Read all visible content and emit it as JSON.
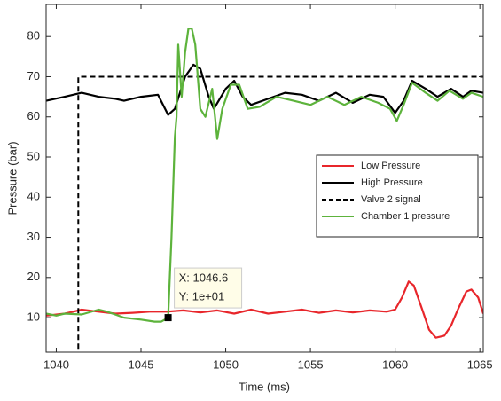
{
  "chart_data": {
    "type": "line",
    "x_label": "Time (ms)",
    "y_label": "Pressure (bar)",
    "xlim": [
      1039.4,
      1065.2
    ],
    "ylim": [
      1.4,
      88
    ],
    "xticks": [
      1040,
      1045,
      1050,
      1055,
      1060,
      1065
    ],
    "yticks": [
      10,
      20,
      30,
      40,
      50,
      60,
      70,
      80
    ],
    "legend": "east",
    "series": [
      {
        "name": "Low Pressure",
        "color": "#e8262b",
        "dash": false,
        "x": [
          1039.4,
          1040.5,
          1041,
          1041.5,
          1042.5,
          1043.5,
          1044.5,
          1045.5,
          1046.5,
          1047.5,
          1048.5,
          1049.5,
          1050.5,
          1051.5,
          1052.5,
          1053.5,
          1054.5,
          1055.5,
          1056.5,
          1057.5,
          1058.5,
          1059.5,
          1060,
          1060.4,
          1060.8,
          1061.1,
          1061.6,
          1062,
          1062.4,
          1062.9,
          1063.3,
          1063.7,
          1064.2,
          1064.5,
          1064.9,
          1065.2
        ],
        "values": [
          10.5,
          11,
          11.5,
          12,
          11.5,
          11,
          11.2,
          11.5,
          11.5,
          11.8,
          11.3,
          11.8,
          11,
          12,
          11,
          11.5,
          12,
          11.2,
          11.8,
          11.3,
          11.8,
          11.5,
          12,
          15,
          19,
          18,
          12,
          7,
          5,
          5.5,
          8,
          12,
          16.5,
          17,
          15,
          11
        ]
      },
      {
        "name": "High Pressure",
        "color": "#000000",
        "dash": false,
        "x": [
          1039.4,
          1040.5,
          1041.5,
          1042.5,
          1043.5,
          1044,
          1045,
          1046,
          1046.6,
          1047,
          1047.6,
          1048.1,
          1048.5,
          1049,
          1049.3,
          1050,
          1050.5,
          1051,
          1051.5,
          1052.5,
          1053.5,
          1054.5,
          1055.5,
          1056.5,
          1057.5,
          1058.5,
          1059.3,
          1060,
          1060.5,
          1061,
          1061.8,
          1062.5,
          1063.3,
          1064,
          1064.5,
          1065.2
        ],
        "values": [
          64,
          65,
          66,
          65,
          64.5,
          64,
          65,
          65.5,
          60.5,
          62,
          70,
          73,
          72,
          65,
          62,
          67,
          69,
          65,
          63,
          64.5,
          66,
          65.5,
          64,
          66,
          63.5,
          65.5,
          65,
          61,
          64,
          69,
          67,
          65,
          67,
          65,
          66.5,
          66
        ]
      },
      {
        "name": "Valve 2 signal",
        "color": "#000000",
        "dash": true,
        "x": [
          1041.3,
          1041.3,
          1065.2
        ],
        "values": [
          0,
          70,
          70
        ]
      },
      {
        "name": "Chamber 1 pressure",
        "color": "#5db33c",
        "dash": false,
        "x": [
          1039.4,
          1040,
          1040.5,
          1041.5,
          1042.5,
          1043,
          1044,
          1045,
          1045.8,
          1046.2,
          1046.6,
          1046.8,
          1047,
          1047.1,
          1047.2,
          1047.4,
          1047.6,
          1047.8,
          1048,
          1048.2,
          1048.5,
          1048.8,
          1049.2,
          1049.5,
          1049.8,
          1050.3,
          1050.8,
          1051.3,
          1052,
          1053,
          1054,
          1055,
          1056,
          1057,
          1058,
          1059,
          1059.7,
          1060.1,
          1060.5,
          1061,
          1061.8,
          1062.5,
          1063.2,
          1064,
          1064.5,
          1065.2
        ],
        "values": [
          11,
          10.5,
          11,
          10.8,
          12,
          11.5,
          10,
          9.5,
          9,
          9,
          10,
          30,
          55,
          60,
          78,
          65,
          76,
          82,
          82,
          78,
          62,
          60,
          67,
          54.5,
          62,
          68,
          68,
          62,
          62.5,
          65,
          64,
          63,
          65,
          63,
          65,
          63.5,
          62,
          59,
          63,
          68.5,
          66,
          64,
          66.5,
          64.5,
          66,
          65
        ]
      }
    ],
    "datatip": {
      "x": 1046.6,
      "y": 10,
      "label_x": "X: 1046.6",
      "label_y": "Y: 1e+01"
    }
  }
}
